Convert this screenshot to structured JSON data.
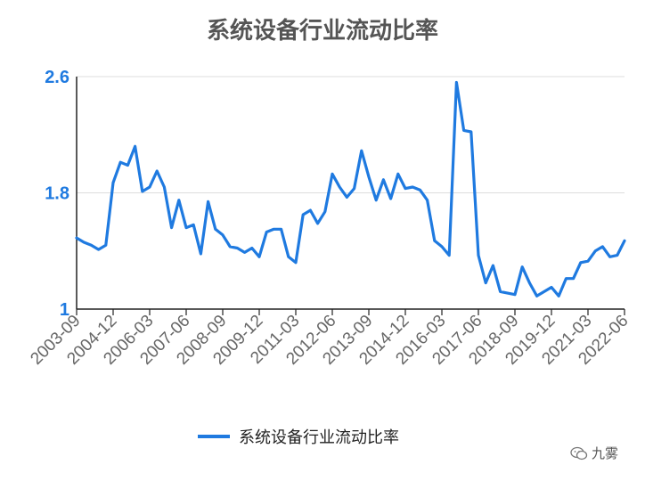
{
  "chart_data": {
    "type": "line",
    "title": "系统设备行业流动比率",
    "xlabel": "",
    "ylabel": "",
    "ylim": [
      1,
      2.6
    ],
    "yticks": [
      "1",
      "1.8",
      "2.6"
    ],
    "xtick_labels": [
      "2003-09",
      "2004-12",
      "2006-03",
      "2007-06",
      "2008-09",
      "2009-12",
      "2011-03",
      "2012-06",
      "2013-09",
      "2014-12",
      "2016-03",
      "2017-06",
      "2018-09",
      "2019-12",
      "2021-03",
      "2022-06"
    ],
    "grid": true,
    "legend_position": "bottom",
    "color": "#1f7ae0",
    "series": [
      {
        "name": "系统设备行业流动比率",
        "values": [
          1.49,
          1.46,
          1.44,
          1.41,
          1.44,
          1.87,
          2.01,
          1.99,
          2.12,
          1.81,
          1.84,
          1.95,
          1.84,
          1.56,
          1.75,
          1.56,
          1.58,
          1.38,
          1.74,
          1.55,
          1.51,
          1.43,
          1.42,
          1.39,
          1.42,
          1.36,
          1.53,
          1.55,
          1.55,
          1.36,
          1.32,
          1.65,
          1.68,
          1.59,
          1.67,
          1.93,
          1.84,
          1.77,
          1.83,
          2.09,
          1.91,
          1.75,
          1.89,
          1.76,
          1.93,
          1.83,
          1.84,
          1.82,
          1.75,
          1.47,
          1.43,
          1.37,
          2.56,
          2.23,
          2.22,
          1.37,
          1.18,
          1.3,
          1.12,
          1.11,
          1.1,
          1.29,
          1.18,
          1.09,
          1.12,
          1.15,
          1.09,
          1.21,
          1.21,
          1.32,
          1.33,
          1.4,
          1.43,
          1.36,
          1.37,
          1.47
        ]
      }
    ]
  },
  "watermark": {
    "icon": "wechat-icon",
    "text": "九雾"
  }
}
